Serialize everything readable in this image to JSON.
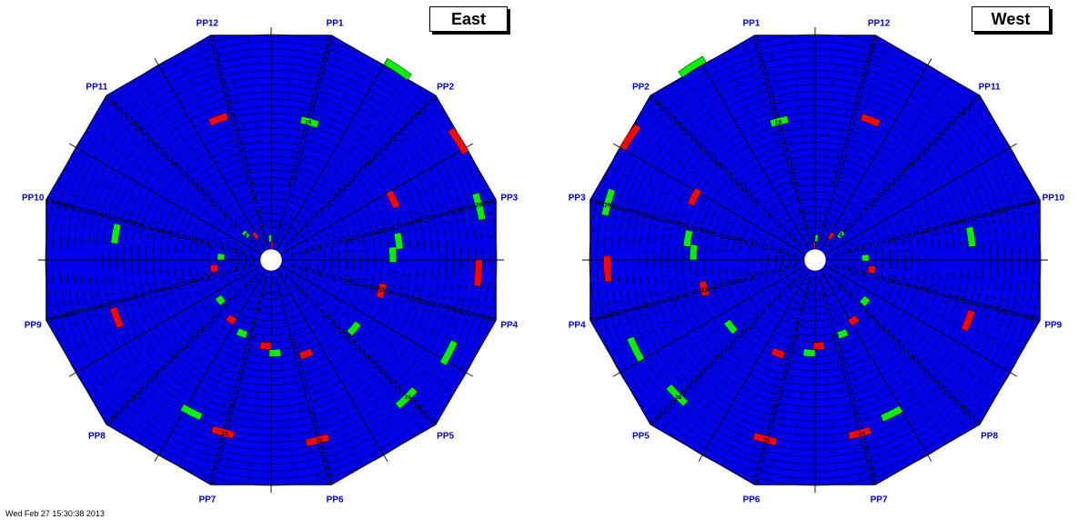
{
  "colors": {
    "good": "#0000ee",
    "bad": "#ff0000",
    "warn": "#00ee00",
    "line": "#000000",
    "label": "#0000cc"
  },
  "footer": "Wed Feb 27 15:30:38 2013",
  "panels": [
    {
      "title": "East",
      "pp_labels": [
        "PP1",
        "PP2",
        "PP3",
        "PP4",
        "PP5",
        "PP6",
        "PP7",
        "PP8",
        "PP9",
        "PP10",
        "PP11",
        "PP12"
      ],
      "highlights": [
        {
          "ring": 1,
          "slot": 0,
          "status": "bad"
        },
        {
          "ring": 2,
          "slot": 59,
          "status": "warn"
        },
        {
          "ring": 3,
          "slot": 54,
          "status": "bad"
        },
        {
          "ring": 4,
          "slot": 52,
          "status": "warn"
        },
        {
          "ring": 6,
          "slot": 45,
          "status": "warn"
        },
        {
          "ring": 7,
          "slot": 43,
          "status": "bad"
        },
        {
          "ring": 8,
          "slot": 38,
          "status": "warn"
        },
        {
          "ring": 9,
          "slot": 35,
          "status": "bad"
        },
        {
          "ring": 10,
          "slot": 33,
          "status": "warn"
        },
        {
          "ring": 11,
          "slot": 30,
          "status": "bad"
        },
        {
          "ring": 12,
          "slot": 29,
          "status": "warn"
        },
        {
          "ring": 13,
          "slot": 26,
          "status": "bad"
        },
        {
          "ring": 14,
          "slot": 21,
          "status": "warn"
        },
        {
          "ring": 15,
          "slot": 17,
          "status": "bad"
        },
        {
          "ring": 16,
          "slot": 14,
          "status": "warn"
        },
        {
          "ring": 17,
          "slot": 13,
          "status": "warn"
        },
        {
          "ring": 18,
          "slot": 10,
          "status": "bad"
        },
        {
          "ring": 19,
          "slot": 2,
          "status": "warn"
        },
        {
          "ring": 20,
          "slot": 56,
          "status": "bad"
        },
        {
          "ring": 21,
          "slot": 46,
          "status": "warn"
        },
        {
          "ring": 22,
          "slot": 41,
          "status": "bad"
        },
        {
          "ring": 23,
          "slot": 34,
          "status": "warn"
        },
        {
          "ring": 24,
          "slot": 32,
          "status": "bad"
        },
        {
          "ring": 25,
          "slot": 27,
          "status": "bad"
        },
        {
          "ring": 26,
          "slot": 22,
          "status": "warn"
        },
        {
          "ring": 27,
          "slot": 19,
          "status": "warn"
        },
        {
          "ring": 28,
          "slot": 15,
          "status": "bad"
        },
        {
          "ring": 29,
          "slot": 12,
          "status": "warn"
        },
        {
          "ring": 30,
          "slot": 9,
          "status": "bad"
        },
        {
          "ring": 31,
          "slot": 5,
          "status": "warn"
        }
      ]
    },
    {
      "title": "West",
      "pp_labels": [
        "PP12",
        "PP11",
        "PP10",
        "PP9",
        "PP8",
        "PP7",
        "PP6",
        "PP5",
        "PP4",
        "PP3",
        "PP2",
        "PP1"
      ],
      "highlights": [
        {
          "ring": 1,
          "slot": 59,
          "status": "bad"
        },
        {
          "ring": 2,
          "slot": 0,
          "status": "warn"
        },
        {
          "ring": 3,
          "slot": 5,
          "status": "bad"
        },
        {
          "ring": 4,
          "slot": 7,
          "status": "warn"
        },
        {
          "ring": 6,
          "slot": 14,
          "status": "warn"
        },
        {
          "ring": 7,
          "slot": 16,
          "status": "bad"
        },
        {
          "ring": 8,
          "slot": 21,
          "status": "warn"
        },
        {
          "ring": 9,
          "slot": 24,
          "status": "bad"
        },
        {
          "ring": 10,
          "slot": 26,
          "status": "warn"
        },
        {
          "ring": 11,
          "slot": 29,
          "status": "bad"
        },
        {
          "ring": 12,
          "slot": 30,
          "status": "warn"
        },
        {
          "ring": 13,
          "slot": 33,
          "status": "bad"
        },
        {
          "ring": 14,
          "slot": 38,
          "status": "warn"
        },
        {
          "ring": 15,
          "slot": 42,
          "status": "bad"
        },
        {
          "ring": 16,
          "slot": 45,
          "status": "warn"
        },
        {
          "ring": 17,
          "slot": 46,
          "status": "warn"
        },
        {
          "ring": 18,
          "slot": 49,
          "status": "bad"
        },
        {
          "ring": 19,
          "slot": 57,
          "status": "warn"
        },
        {
          "ring": 20,
          "slot": 3,
          "status": "bad"
        },
        {
          "ring": 21,
          "slot": 13,
          "status": "warn"
        },
        {
          "ring": 22,
          "slot": 18,
          "status": "bad"
        },
        {
          "ring": 23,
          "slot": 25,
          "status": "warn"
        },
        {
          "ring": 24,
          "slot": 27,
          "status": "bad"
        },
        {
          "ring": 25,
          "slot": 32,
          "status": "bad"
        },
        {
          "ring": 26,
          "slot": 37,
          "status": "warn"
        },
        {
          "ring": 27,
          "slot": 40,
          "status": "warn"
        },
        {
          "ring": 28,
          "slot": 44,
          "status": "bad"
        },
        {
          "ring": 29,
          "slot": 47,
          "status": "warn"
        },
        {
          "ring": 30,
          "slot": 50,
          "status": "bad"
        },
        {
          "ring": 31,
          "slot": 54,
          "status": "warn"
        }
      ]
    }
  ]
}
